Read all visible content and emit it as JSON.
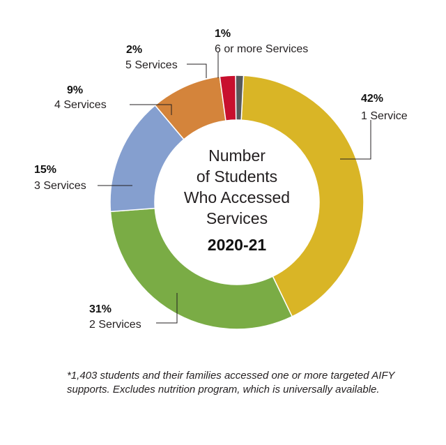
{
  "chart_data": {
    "type": "pie",
    "donut": true,
    "title_lines": [
      "Number",
      "of Students",
      "Who Accessed",
      "Services"
    ],
    "subtitle": "2020-21",
    "slices": [
      {
        "label": "1 Service",
        "percent_label": "42%",
        "value": 42,
        "color": "#d9b526"
      },
      {
        "label": "2 Services",
        "percent_label": "31%",
        "value": 31,
        "color": "#7aac45"
      },
      {
        "label": "3 Services",
        "percent_label": "15%",
        "value": 15,
        "color": "#859fcf"
      },
      {
        "label": "4 Services",
        "percent_label": "9%",
        "value": 9,
        "color": "#d4843b"
      },
      {
        "label": "5 Services",
        "percent_label": "2%",
        "value": 2,
        "color": "#c8102e"
      },
      {
        "label": "6 or more Services",
        "percent_label": "1%",
        "value": 1,
        "color": "#58595b"
      }
    ]
  },
  "footnote": "*1,403 students and their families accessed one or more targeted AIFY supports. Excludes nutrition program, which is universally available."
}
